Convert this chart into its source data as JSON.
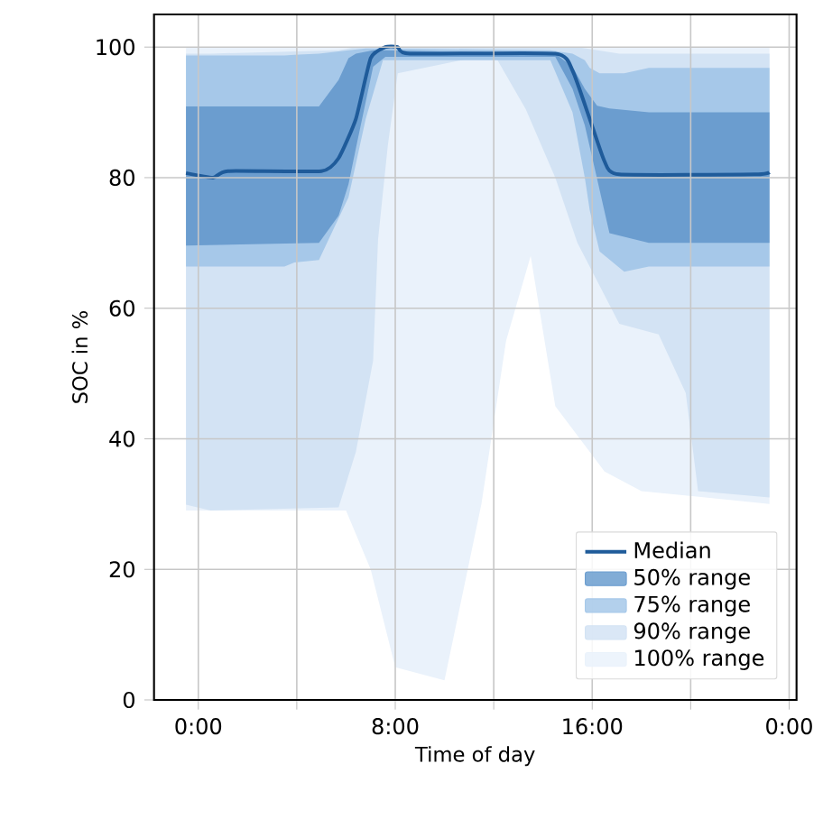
{
  "chart_data": {
    "type": "line",
    "xlabel": "Time of day",
    "ylabel": "SOC in %",
    "xlim": [
      -1.8,
      24.3
    ],
    "ylim": [
      0,
      105
    ],
    "xticks": [
      {
        "value": 0,
        "label": "0:00"
      },
      {
        "value": 4,
        "label": null
      },
      {
        "value": 8,
        "label": "8:00"
      },
      {
        "value": 12,
        "label": null
      },
      {
        "value": 16,
        "label": "16:00"
      },
      {
        "value": 20,
        "label": null
      },
      {
        "value": 24,
        "label": "0:00"
      }
    ],
    "yticks": [
      0,
      20,
      40,
      60,
      80,
      100
    ],
    "grid": true,
    "legend": "bottom right",
    "series": [
      {
        "name": "Median",
        "color": "#1f5b9a",
        "x": [
          -0.5,
          0.6,
          1.2,
          5.0,
          5.7,
          6.4,
          7.0,
          7.6,
          8.1,
          8.6,
          14.5,
          15.2,
          15.9,
          16.5,
          17.1,
          22.6,
          23.2
        ],
        "values": [
          80.7,
          80,
          81,
          81,
          83,
          89,
          98.3,
          100,
          100,
          99,
          99,
          96.4,
          89,
          82.5,
          80.5,
          80.5,
          80.8
        ]
      },
      {
        "name": "50% range",
        "type": "area",
        "color": "#6b9dcf",
        "x": [
          -0.5,
          4.9,
          5.7,
          6.1,
          6.4,
          7.1,
          7.6,
          14.5,
          15.2,
          15.7,
          16.2,
          16.7,
          18.3,
          23.2
        ],
        "values": [
          null,
          null,
          null,
          null,
          null,
          null,
          null,
          null,
          null,
          null,
          null,
          null,
          null,
          null
        ],
        "upper": [
          90.9,
          90.9,
          95,
          98.3,
          99,
          99.5,
          99.5,
          99,
          97,
          93.6,
          91,
          90.6,
          90,
          90
        ],
        "lower": [
          69.6,
          70,
          74.2,
          79,
          84.5,
          97,
          98.5,
          98.5,
          93.6,
          88,
          79.8,
          71.5,
          70,
          70
        ]
      },
      {
        "name": "75% range",
        "type": "area",
        "color": "#a6c8e9",
        "x": [
          -0.5,
          3.5,
          3.9,
          4.9,
          6.1,
          6.8,
          7.5,
          14.3,
          15.2,
          15.7,
          15.9,
          16.3,
          17.3,
          18.3,
          23.2
        ],
        "values": [
          null,
          null,
          null,
          null,
          null,
          null,
          null,
          null,
          null,
          null,
          null,
          null,
          null,
          null,
          null
        ],
        "upper": [
          98.7,
          98.7,
          98.8,
          99,
          99.5,
          99.8,
          99.8,
          99.5,
          99,
          98,
          96.8,
          96,
          96,
          96.8,
          96.8
        ],
        "lower": [
          66.4,
          66.4,
          67,
          67.4,
          77,
          89,
          98,
          98,
          90,
          80,
          75,
          68.7,
          65.6,
          66.4,
          66.4
        ]
      },
      {
        "name": "90% range",
        "type": "area",
        "color": "#d3e3f4",
        "x": [
          -0.5,
          0.5,
          5.7,
          6.4,
          7.1,
          7.3,
          7.7,
          8.1,
          12.0,
          13.3,
          14.5,
          15.4,
          17.1,
          18.7,
          19.8,
          20.3,
          23.2
        ],
        "values": [
          null,
          null,
          null,
          null,
          null,
          null,
          null,
          null,
          null,
          null,
          null,
          null,
          null,
          null,
          null,
          null,
          null
        ],
        "upper": [
          99,
          99,
          99.5,
          100,
          100,
          100,
          100,
          100,
          100,
          100,
          100,
          100,
          99,
          99,
          99,
          99,
          99
        ],
        "lower": [
          29.9,
          29,
          29.5,
          38,
          52,
          70.5,
          85,
          96,
          99,
          90.5,
          80,
          70,
          57.6,
          56,
          47,
          32,
          31
        ]
      },
      {
        "name": "100% range",
        "type": "area",
        "color": "#eaf2fb",
        "x": [
          -0.5,
          6.0,
          7.0,
          8.0,
          10.0,
          11.5,
          12.5,
          13.5,
          14.5,
          15.5,
          16.5,
          18.0,
          23.2
        ],
        "values": [
          null,
          null,
          null,
          null,
          null,
          null,
          null,
          null,
          null,
          null,
          null,
          null,
          null
        ],
        "upper": [
          100,
          100,
          100,
          100,
          100,
          100,
          100,
          100,
          100,
          100,
          100,
          100,
          100
        ],
        "lower": [
          29,
          29,
          20,
          5,
          3,
          30,
          55,
          68,
          45,
          40,
          35,
          32,
          30
        ]
      }
    ]
  }
}
